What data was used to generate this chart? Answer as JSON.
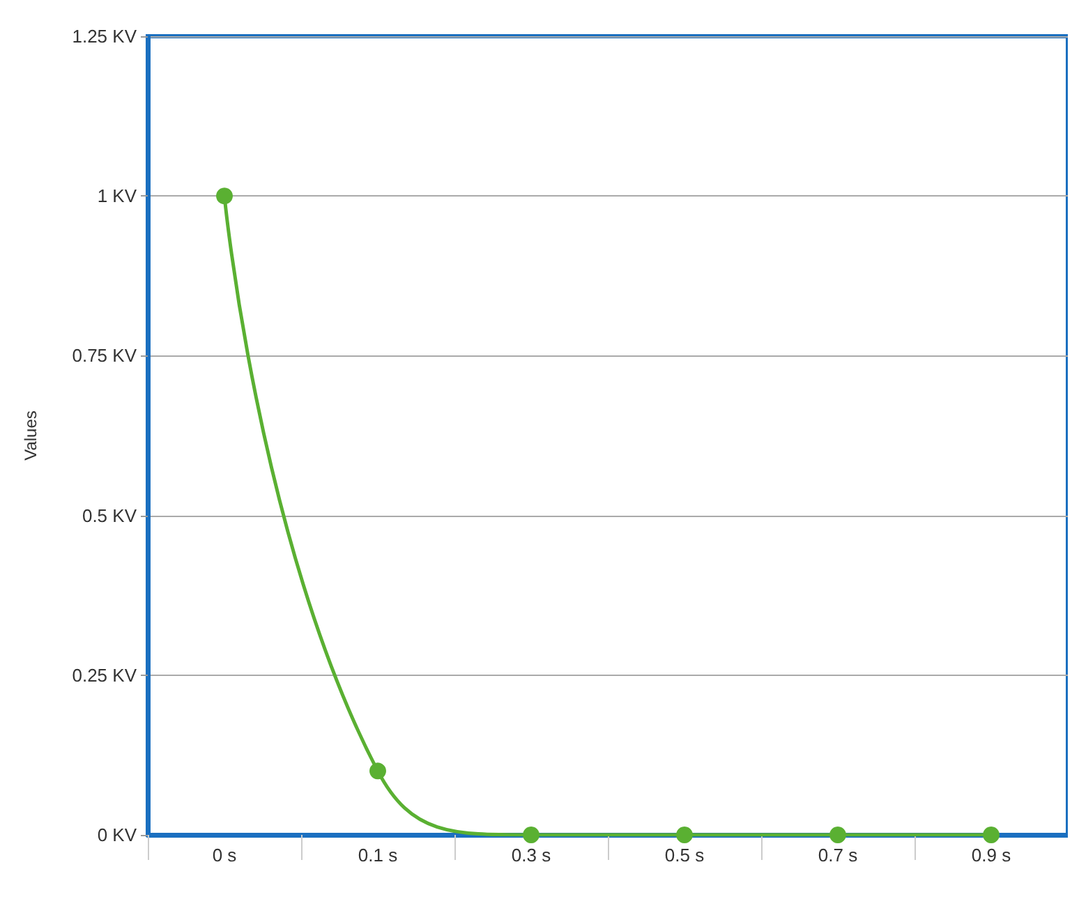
{
  "chart_data": {
    "type": "line",
    "ylabel": "Values",
    "categories": [
      "0 s",
      "0.1 s",
      "0.3 s",
      "0.5 s",
      "0.7 s",
      "0.9 s"
    ],
    "series": [
      {
        "color": "#5ab032",
        "values": [
          1,
          0.1,
          0,
          0,
          0,
          0
        ]
      }
    ],
    "ylim": [
      0,
      1.25
    ],
    "yticks": [
      {
        "value": 0,
        "label": "0 KV"
      },
      {
        "value": 0.25,
        "label": "0.25 KV"
      },
      {
        "value": 0.5,
        "label": "0.5 KV"
      },
      {
        "value": 0.75,
        "label": "0.75 KV"
      },
      {
        "value": 1,
        "label": "1 KV"
      },
      {
        "value": 1.25,
        "label": "1.25 KV"
      }
    ],
    "grid": "y",
    "marker": "circle",
    "line_style": "solid"
  }
}
